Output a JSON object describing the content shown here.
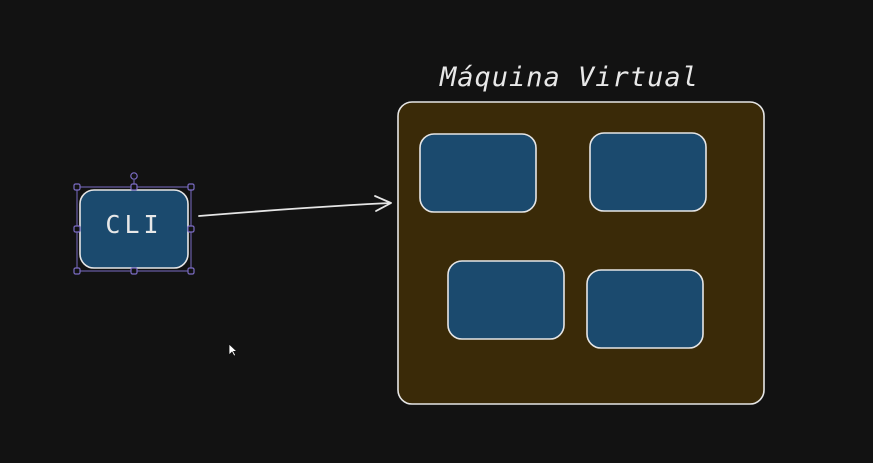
{
  "diagram": {
    "vm_title": "Máquina Virtual",
    "cli_label": "CLI"
  },
  "colors": {
    "background": "#121212",
    "stroke": "#e6e6e6",
    "vm_fill": "#3a2a08",
    "box_fill": "#1b4a6e",
    "selection": "#7b6cc4"
  },
  "icons": {
    "pointer": "mouse-pointer-icon"
  }
}
